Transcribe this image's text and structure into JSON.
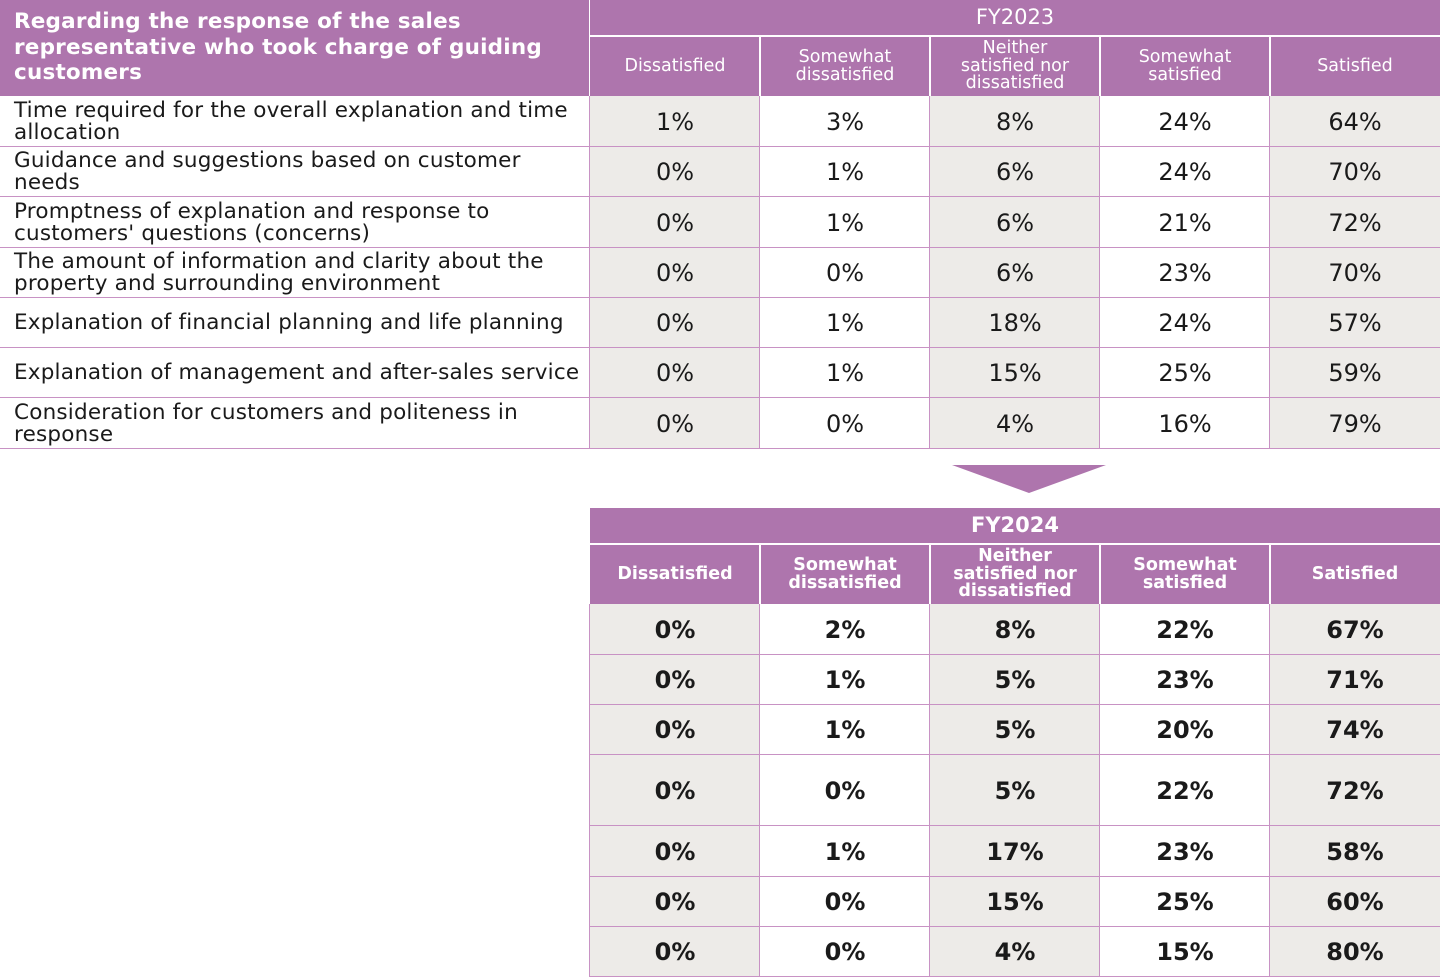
{
  "header": {
    "corner_text": "Regarding the response of the sales representative who took charge of guiding customers"
  },
  "columns": [
    "Dissatisfied",
    "Somewhat dissatisfied",
    "Neither satisfied nor dissatisfied",
    "Somewhat satisfied",
    "Satisfied"
  ],
  "rows": [
    "Time required for the overall explanation and time allocation",
    "Guidance and suggestions based on customer needs",
    "Promptness of explanation and response to customers' questions (concerns)",
    "The amount of information and clarity about the property and surrounding environment",
    "Explanation of financial planning and life planning",
    "Explanation of management and after-sales service",
    "Consideration for customers and politeness in response"
  ],
  "colors": {
    "header_purple": "#ae75ad",
    "cell_grey": "#edebe8",
    "rule_purple": "#c892c4"
  },
  "icons": {
    "transition_arrow": "down-triangle-icon"
  },
  "chart_data": {
    "type": "table",
    "title": "Regarding the response of the sales representative who took charge of guiding customers",
    "columns": [
      "Dissatisfied",
      "Somewhat dissatisfied",
      "Neither satisfied nor dissatisfied",
      "Somewhat satisfied",
      "Satisfied"
    ],
    "tables": [
      {
        "name": "FY2023",
        "values": [
          [
            "1%",
            "3%",
            "8%",
            "24%",
            "64%"
          ],
          [
            "0%",
            "1%",
            "6%",
            "24%",
            "70%"
          ],
          [
            "0%",
            "1%",
            "6%",
            "21%",
            "72%"
          ],
          [
            "0%",
            "0%",
            "6%",
            "23%",
            "70%"
          ],
          [
            "0%",
            "1%",
            "18%",
            "24%",
            "57%"
          ],
          [
            "0%",
            "1%",
            "15%",
            "25%",
            "59%"
          ],
          [
            "0%",
            "0%",
            "4%",
            "16%",
            "79%"
          ]
        ]
      },
      {
        "name": "FY2024",
        "values": [
          [
            "0%",
            "2%",
            "8%",
            "22%",
            "67%"
          ],
          [
            "0%",
            "1%",
            "5%",
            "23%",
            "71%"
          ],
          [
            "0%",
            "1%",
            "5%",
            "20%",
            "74%"
          ],
          [
            "0%",
            "0%",
            "5%",
            "22%",
            "72%"
          ],
          [
            "0%",
            "1%",
            "17%",
            "23%",
            "58%"
          ],
          [
            "0%",
            "0%",
            "15%",
            "25%",
            "60%"
          ],
          [
            "0%",
            "0%",
            "4%",
            "15%",
            "80%"
          ]
        ]
      }
    ]
  }
}
